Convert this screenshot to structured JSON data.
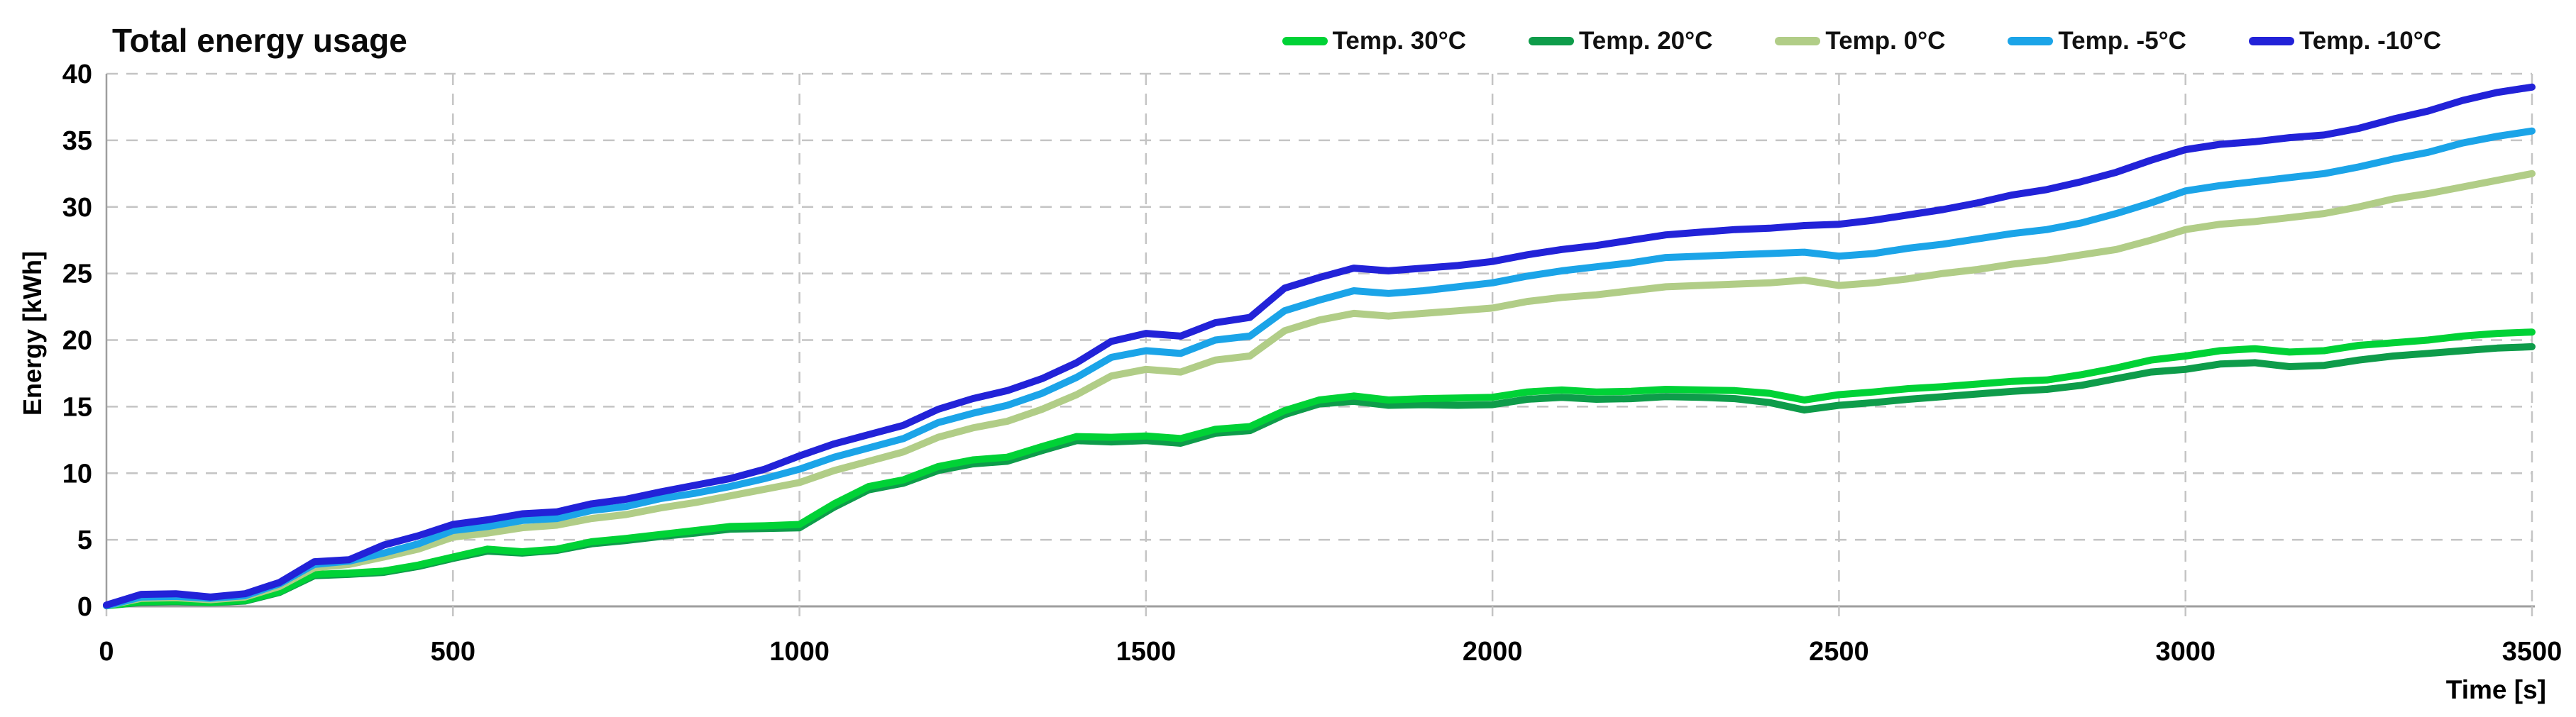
{
  "title": "Total energy usage",
  "axes": {
    "x_label": "Time [s]",
    "y_label": "Energy  [kWh]"
  },
  "style": {
    "gridline_color": "#c4c4c4",
    "axis_color": "#9e9e9e",
    "tick_label_color": "#000000",
    "background": "#ffffff"
  },
  "chart_data": {
    "type": "line",
    "title": "Total energy usage",
    "xlabel": "Time [s]",
    "ylabel": "Energy  [kWh]",
    "xlim": [
      0,
      3500
    ],
    "ylim": [
      0,
      40
    ],
    "x_ticks": [
      0,
      500,
      1000,
      1500,
      2000,
      2500,
      3000,
      3500
    ],
    "y_ticks": [
      0,
      5,
      10,
      15,
      20,
      25,
      30,
      35,
      40
    ],
    "grid": true,
    "grid_style": "dashed",
    "legend_position": "top-right",
    "x": [
      0,
      50,
      100,
      150,
      200,
      250,
      300,
      350,
      400,
      450,
      500,
      550,
      600,
      650,
      700,
      750,
      800,
      850,
      900,
      950,
      1000,
      1050,
      1100,
      1150,
      1200,
      1250,
      1300,
      1350,
      1400,
      1450,
      1500,
      1550,
      1600,
      1650,
      1700,
      1750,
      1800,
      1850,
      1900,
      1950,
      2000,
      2050,
      2100,
      2150,
      2200,
      2250,
      2300,
      2350,
      2400,
      2450,
      2500,
      2550,
      2600,
      2650,
      2700,
      2750,
      2800,
      2850,
      2900,
      2950,
      3000,
      3050,
      3100,
      3150,
      3200,
      3250,
      3300,
      3350,
      3400,
      3450,
      3500
    ],
    "series": [
      {
        "name": "Temp. 30°C",
        "color": "#00d236",
        "values": [
          0.05,
          0.35,
          0.4,
          0.3,
          0.45,
          1.1,
          2.4,
          2.5,
          2.65,
          3.1,
          3.7,
          4.3,
          4.1,
          4.3,
          4.85,
          5.1,
          5.4,
          5.7,
          6.0,
          6.05,
          6.15,
          7.7,
          9.0,
          9.5,
          10.5,
          11.0,
          11.2,
          12.0,
          12.75,
          12.7,
          12.8,
          12.6,
          13.3,
          13.5,
          14.7,
          15.5,
          15.8,
          15.5,
          15.6,
          15.65,
          15.7,
          16.1,
          16.25,
          16.1,
          16.15,
          16.3,
          16.25,
          16.2,
          16.0,
          15.5,
          15.9,
          16.1,
          16.35,
          16.5,
          16.7,
          16.9,
          17.0,
          17.4,
          17.9,
          18.5,
          18.8,
          19.2,
          19.35,
          19.1,
          19.2,
          19.6,
          19.8,
          20.0,
          20.3,
          20.5,
          20.6
        ]
      },
      {
        "name": "Temp. 20°C",
        "color": "#0e9c4a",
        "values": [
          0.05,
          0.3,
          0.35,
          0.28,
          0.4,
          1.05,
          2.3,
          2.4,
          2.55,
          3.0,
          3.6,
          4.15,
          4.0,
          4.2,
          4.7,
          4.95,
          5.25,
          5.5,
          5.8,
          5.85,
          5.9,
          7.45,
          8.75,
          9.25,
          10.2,
          10.7,
          10.9,
          11.7,
          12.45,
          12.35,
          12.45,
          12.25,
          13.0,
          13.2,
          14.4,
          15.2,
          15.4,
          15.1,
          15.15,
          15.1,
          15.15,
          15.55,
          15.7,
          15.55,
          15.6,
          15.75,
          15.7,
          15.6,
          15.3,
          14.75,
          15.1,
          15.3,
          15.55,
          15.75,
          15.95,
          16.15,
          16.3,
          16.6,
          17.1,
          17.6,
          17.8,
          18.2,
          18.3,
          18.0,
          18.1,
          18.5,
          18.8,
          19.0,
          19.2,
          19.4,
          19.5
        ]
      },
      {
        "name": "Temp. 0°C",
        "color": "#b1cd87",
        "values": [
          0.05,
          0.6,
          0.65,
          0.5,
          0.7,
          1.5,
          2.9,
          3.15,
          3.7,
          4.3,
          5.2,
          5.5,
          5.9,
          6.1,
          6.6,
          6.9,
          7.4,
          7.8,
          8.3,
          8.8,
          9.3,
          10.2,
          10.9,
          11.6,
          12.7,
          13.4,
          13.9,
          14.8,
          15.9,
          17.3,
          17.8,
          17.6,
          18.5,
          18.8,
          20.7,
          21.5,
          22.0,
          21.8,
          22.0,
          22.2,
          22.4,
          22.9,
          23.2,
          23.4,
          23.7,
          24.0,
          24.1,
          24.2,
          24.3,
          24.5,
          24.1,
          24.3,
          24.6,
          25.0,
          25.3,
          25.7,
          26.0,
          26.4,
          26.8,
          27.5,
          28.3,
          28.7,
          28.9,
          29.2,
          29.5,
          30.0,
          30.6,
          31.0,
          31.5,
          32.0,
          32.5
        ]
      },
      {
        "name": "Temp. -5°C",
        "color": "#1ba4e8",
        "values": [
          0.05,
          0.7,
          0.75,
          0.6,
          0.8,
          1.7,
          3.15,
          3.4,
          4.0,
          4.7,
          5.7,
          6.0,
          6.45,
          6.6,
          7.2,
          7.5,
          8.1,
          8.5,
          9.0,
          9.6,
          10.3,
          11.2,
          11.9,
          12.6,
          13.8,
          14.5,
          15.1,
          16.0,
          17.2,
          18.7,
          19.2,
          19.0,
          20.0,
          20.3,
          22.2,
          23.0,
          23.7,
          23.5,
          23.7,
          24.0,
          24.3,
          24.8,
          25.2,
          25.5,
          25.8,
          26.2,
          26.3,
          26.4,
          26.5,
          26.6,
          26.3,
          26.5,
          26.9,
          27.2,
          27.6,
          28.0,
          28.3,
          28.8,
          29.5,
          30.3,
          31.2,
          31.6,
          31.9,
          32.2,
          32.5,
          33.0,
          33.6,
          34.1,
          34.8,
          35.3,
          35.7
        ]
      },
      {
        "name": "Temp. -10°C",
        "color": "#2222d8",
        "values": [
          0.1,
          0.9,
          0.95,
          0.7,
          0.95,
          1.8,
          3.35,
          3.5,
          4.6,
          5.3,
          6.15,
          6.5,
          6.95,
          7.1,
          7.7,
          8.05,
          8.6,
          9.1,
          9.6,
          10.3,
          11.3,
          12.2,
          12.9,
          13.6,
          14.8,
          15.6,
          16.2,
          17.1,
          18.3,
          19.9,
          20.5,
          20.3,
          21.3,
          21.7,
          23.9,
          24.7,
          25.4,
          25.2,
          25.4,
          25.6,
          25.9,
          26.4,
          26.8,
          27.1,
          27.5,
          27.9,
          28.1,
          28.3,
          28.4,
          28.6,
          28.7,
          29.0,
          29.4,
          29.8,
          30.3,
          30.9,
          31.3,
          31.9,
          32.6,
          33.5,
          34.3,
          34.7,
          34.9,
          35.2,
          35.4,
          35.9,
          36.6,
          37.2,
          38.0,
          38.6,
          39.0
        ]
      }
    ]
  }
}
